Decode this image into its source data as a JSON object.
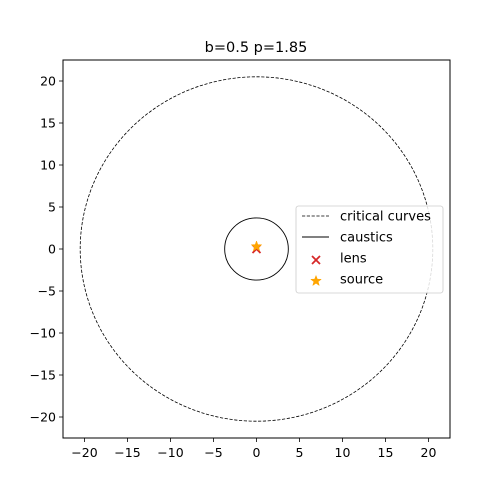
{
  "chart_data": {
    "type": "scatter",
    "title": "b=0.5 p=1.85",
    "xlabel": "",
    "ylabel": "",
    "xlim": [
      -22.5,
      22.5
    ],
    "ylim": [
      -22.5,
      22.5
    ],
    "x_ticks": [
      -20,
      -15,
      -10,
      -5,
      0,
      5,
      10,
      15,
      20
    ],
    "y_ticks": [
      -20,
      -15,
      -10,
      -5,
      0,
      5,
      10,
      15,
      20
    ],
    "x_tick_labels": [
      "−20",
      "−15",
      "−10",
      "−5",
      "0",
      "5",
      "10",
      "15",
      "20"
    ],
    "y_tick_labels": [
      "−20",
      "−15",
      "−10",
      "−5",
      "0",
      "5",
      "10",
      "15",
      "20"
    ],
    "grid": false,
    "legend_placement": "center-right",
    "series": [
      {
        "name": "critical curves",
        "shape": "circle",
        "center": [
          0,
          0
        ],
        "radius": 20.5,
        "line_style": "dashed",
        "color": "#000000"
      },
      {
        "name": "caustics",
        "shape": "circle",
        "center": [
          0,
          0
        ],
        "radius": 3.7,
        "line_style": "solid",
        "color": "#000000"
      },
      {
        "name": "lens",
        "marker": "x",
        "x": [
          0
        ],
        "y": [
          0
        ],
        "color": "#d62728"
      },
      {
        "name": "source",
        "marker": "star",
        "x": [
          0
        ],
        "y": [
          0.3
        ],
        "color": "#ffa500"
      }
    ]
  }
}
